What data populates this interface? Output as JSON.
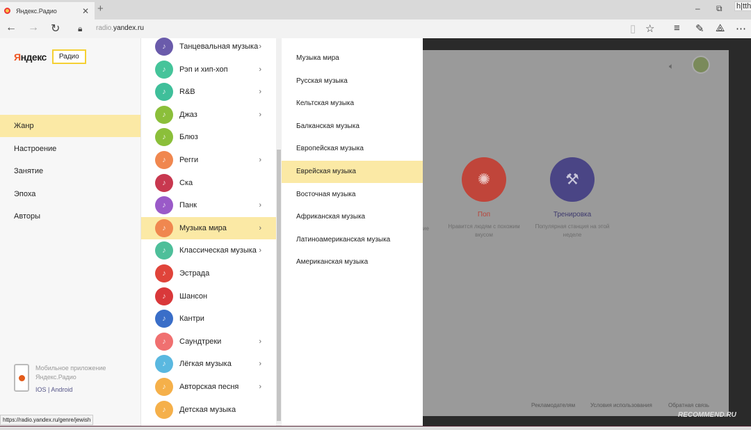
{
  "browser": {
    "tab_title": "Яндекс.Радио",
    "url_prefix": "radio.",
    "url_domain": "yandex.ru",
    "tooltip": "h|tth",
    "status_url": "https://radio.yandex.ru/genre/jewish"
  },
  "logo": {
    "brand_first": "Я",
    "brand_rest": "ндекс",
    "product": "Радио"
  },
  "categories": [
    {
      "label": "Жанр",
      "active": true
    },
    {
      "label": "Настроение"
    },
    {
      "label": "Занятие"
    },
    {
      "label": "Эпоха"
    },
    {
      "label": "Авторы"
    }
  ],
  "app_promo": {
    "text": "Мобильное приложение Яндекс.Радио",
    "ios": "IOS",
    "sep": "|",
    "android": "Android"
  },
  "genres": [
    {
      "label": "Танцевальная музыка",
      "color": "#6a5bab",
      "chevron": true
    },
    {
      "label": "Рэп и хип-хоп",
      "color": "#45c49a",
      "chevron": true
    },
    {
      "label": "R&B",
      "color": "#3fbf9a",
      "chevron": true
    },
    {
      "label": "Джаз",
      "color": "#8bbf3a",
      "chevron": true
    },
    {
      "label": "Блюз",
      "color": "#8bbf3a",
      "chevron": false
    },
    {
      "label": "Регги",
      "color": "#f0874f",
      "chevron": true
    },
    {
      "label": "Ска",
      "color": "#c8384f",
      "chevron": false
    },
    {
      "label": "Панк",
      "color": "#9a5ac8",
      "chevron": true
    },
    {
      "label": "Музыка мира",
      "color": "#f0874f",
      "chevron": true,
      "active": true
    },
    {
      "label": "Классическая музыка",
      "color": "#4ebf9a",
      "chevron": true
    },
    {
      "label": "Эстрада",
      "color": "#e0443a",
      "chevron": false
    },
    {
      "label": "Шансон",
      "color": "#d9383a",
      "chevron": false
    },
    {
      "label": "Кантри",
      "color": "#3a6ec8",
      "chevron": false
    },
    {
      "label": "Саундтреки",
      "color": "#f07070",
      "chevron": true
    },
    {
      "label": "Лёгкая музыка",
      "color": "#5ab8e0",
      "chevron": true
    },
    {
      "label": "Авторская песня",
      "color": "#f5b04a",
      "chevron": true
    },
    {
      "label": "Детская музыка",
      "color": "#f5b04a",
      "chevron": false
    }
  ],
  "subgenres": [
    {
      "label": "Музыка мира"
    },
    {
      "label": "Русская музыка"
    },
    {
      "label": "Кельтская музыка"
    },
    {
      "label": "Балканская музыка"
    },
    {
      "label": "Европейская музыка"
    },
    {
      "label": "Еврейская музыка",
      "active": true
    },
    {
      "label": "Восточная музыка"
    },
    {
      "label": "Африканская музыка"
    },
    {
      "label": "Латиноамериканская музыка"
    },
    {
      "label": "Американская музыка"
    }
  ],
  "stations": [
    {
      "name": "Поп",
      "desc": "Нравится людям с похожим вкусом",
      "color": "#c0453a",
      "name_color": "#b8453a"
    },
    {
      "name": "Тренировка",
      "desc": "Популярная станция на этой неделе",
      "color": "#4a4585",
      "name_color": "#3e3a6e"
    }
  ],
  "partial_text": "ие",
  "footer": {
    "advertisers": "Рекламодателям",
    "terms": "Условия использования",
    "feedback": "Обратная связь"
  },
  "watermark": "RECOMMEND.RU"
}
